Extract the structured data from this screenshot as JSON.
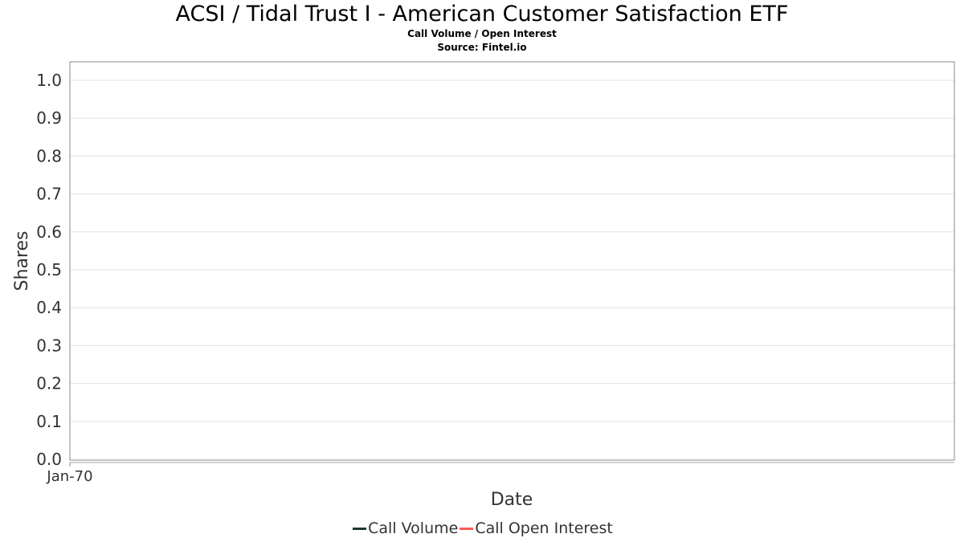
{
  "chart_data": {
    "type": "line",
    "title": "ACSI / Tidal Trust I - American Customer Satisfaction ETF",
    "subtitle": "Call Volume / Open Interest",
    "source": "Source: Fintel.io",
    "xlabel": "Date",
    "ylabel": "Shares",
    "x_ticks": [
      "Jan-70"
    ],
    "y_ticks": [
      "0.0",
      "0.1",
      "0.2",
      "0.3",
      "0.4",
      "0.5",
      "0.6",
      "0.7",
      "0.8",
      "0.9",
      "1.0"
    ],
    "ylim": [
      0,
      1.05
    ],
    "grid": true,
    "legend_position": "bottom",
    "series": [
      {
        "name": "Call Volume",
        "color": "#1a3a2a",
        "values": []
      },
      {
        "name": "Call Open Interest",
        "color": "#ff5a5a",
        "values": []
      }
    ]
  }
}
